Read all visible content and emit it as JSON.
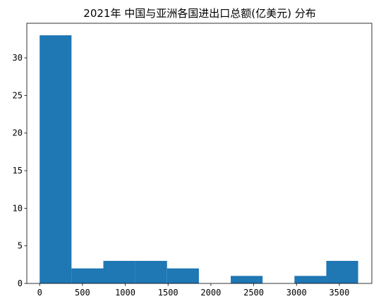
{
  "chart_data": {
    "type": "bar",
    "title": "2021年 中国与亚洲各国进出口总额(亿美元) 分布",
    "xlabel": "",
    "ylabel": "",
    "xlim": [
      -150,
      3880
    ],
    "ylim": [
      0,
      34.6
    ],
    "xticks": [
      0,
      500,
      1000,
      1500,
      2000,
      2500,
      3000,
      3500
    ],
    "yticks": [
      0,
      5,
      10,
      15,
      20,
      25,
      30
    ],
    "bar_color": "#1f77b4",
    "bins": [
      {
        "x0": 0,
        "x1": 372,
        "count": 33
      },
      {
        "x0": 372,
        "x1": 744,
        "count": 2
      },
      {
        "x0": 744,
        "x1": 1116,
        "count": 3
      },
      {
        "x0": 1116,
        "x1": 1488,
        "count": 3
      },
      {
        "x0": 1488,
        "x1": 1860,
        "count": 2
      },
      {
        "x0": 1860,
        "x1": 2232,
        "count": 0
      },
      {
        "x0": 2232,
        "x1": 2604,
        "count": 1
      },
      {
        "x0": 2604,
        "x1": 2976,
        "count": 0
      },
      {
        "x0": 2976,
        "x1": 3348,
        "count": 1
      },
      {
        "x0": 3348,
        "x1": 3720,
        "count": 3
      }
    ],
    "grid": false,
    "legend": "none"
  }
}
